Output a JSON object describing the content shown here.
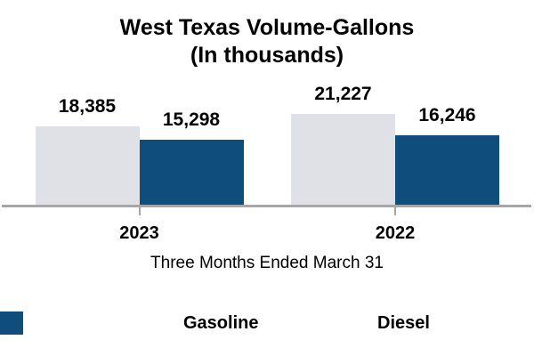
{
  "title": {
    "line1": "West Texas Volume-Gallons",
    "line2": "(In thousands)"
  },
  "xlabel": "Three Months Ended March 31",
  "chart_data": {
    "type": "bar",
    "title": "West Texas Volume-Gallons (In thousands)",
    "categories": [
      "2023",
      "2022"
    ],
    "series": [
      {
        "name": "Gasoline",
        "color": "#E0E1E7",
        "values": [
          18385,
          21227
        ]
      },
      {
        "name": "Diesel",
        "color": "#0F4D7D",
        "values": [
          15298,
          16246
        ]
      }
    ],
    "value_labels": [
      "18,385",
      "15,298",
      "21,227",
      "16,246"
    ],
    "xlabel": "Three Months Ended March 31",
    "ylabel": "",
    "ylim": [
      0,
      22000
    ],
    "grid": false,
    "axis_color": "#A6A6A6",
    "legend_position": "bottom"
  }
}
